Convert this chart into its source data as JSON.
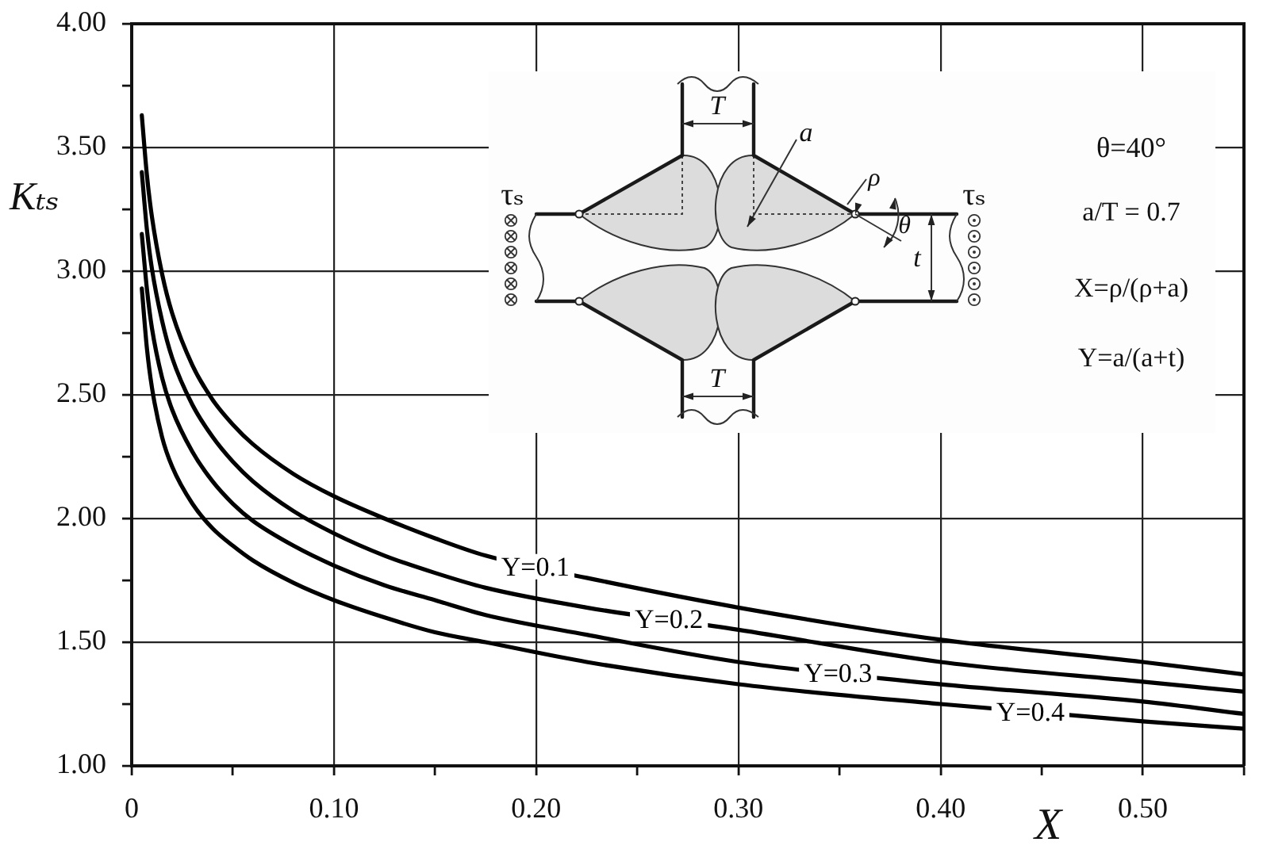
{
  "chart_data": {
    "type": "line",
    "xlabel": "X",
    "ylabel": "Kₜₛ",
    "x": [
      0.005,
      0.0075,
      0.01,
      0.015,
      0.02,
      0.03,
      0.04,
      0.05,
      0.06,
      0.08,
      0.1,
      0.125,
      0.15,
      0.175,
      0.225,
      0.3,
      0.4,
      0.5,
      0.55
    ],
    "series": [
      {
        "name": "Y=0.1",
        "color": "#000000",
        "values": [
          3.63,
          3.39,
          3.22,
          2.99,
          2.83,
          2.62,
          2.48,
          2.38,
          2.3,
          2.18,
          2.09,
          2.0,
          1.92,
          1.85,
          1.76,
          1.64,
          1.51,
          1.42,
          1.37
        ]
      },
      {
        "name": "Y=0.2",
        "color": "#000000",
        "values": [
          3.4,
          3.17,
          3.01,
          2.8,
          2.65,
          2.46,
          2.33,
          2.23,
          2.15,
          2.03,
          1.94,
          1.85,
          1.78,
          1.72,
          1.64,
          1.55,
          1.42,
          1.34,
          1.3
        ]
      },
      {
        "name": "Y=0.3",
        "color": "#000000",
        "values": [
          3.15,
          2.93,
          2.77,
          2.57,
          2.44,
          2.27,
          2.15,
          2.06,
          1.99,
          1.89,
          1.81,
          1.73,
          1.67,
          1.61,
          1.53,
          1.42,
          1.33,
          1.26,
          1.21
        ]
      },
      {
        "name": "Y=0.4",
        "color": "#000000",
        "values": [
          2.93,
          2.69,
          2.53,
          2.33,
          2.21,
          2.06,
          1.96,
          1.89,
          1.83,
          1.74,
          1.67,
          1.6,
          1.54,
          1.5,
          1.42,
          1.33,
          1.25,
          1.18,
          1.15
        ]
      }
    ],
    "xlim": [
      0,
      0.55
    ],
    "xticks": [
      0,
      {
        "value": 0.05,
        "label": null
      },
      {
        "value": 0.1,
        "label": "0.10"
      },
      {
        "value": 0.15,
        "label": null
      },
      {
        "value": 0.2,
        "label": "0.20"
      },
      {
        "value": 0.25,
        "label": null
      },
      {
        "value": 0.3,
        "label": "0.30"
      },
      {
        "value": 0.35,
        "label": null
      },
      {
        "value": 0.4,
        "label": "0.40"
      },
      {
        "value": 0.45,
        "label": null
      },
      {
        "value": 0.5,
        "label": "0.50"
      },
      {
        "value": 0.55,
        "label": null
      }
    ],
    "ylim": [
      1,
      4
    ],
    "yticks": [
      {
        "value": 1,
        "label": "1.00"
      },
      {
        "value": 1.25,
        "label": null
      },
      {
        "value": 1.5,
        "label": "1.50"
      },
      {
        "value": 1.75,
        "label": null
      },
      {
        "value": 2,
        "label": "2.00"
      },
      {
        "value": 2.25,
        "label": null
      },
      {
        "value": 2.5,
        "label": "2.50"
      },
      {
        "value": 2.75,
        "label": null
      },
      {
        "value": 3,
        "label": "3.00"
      },
      {
        "value": 3.25,
        "label": null
      },
      {
        "value": 3.5,
        "label": "3.50"
      },
      {
        "value": 3.75,
        "label": null
      },
      {
        "value": 4,
        "label": "4.00"
      }
    ],
    "grid": true,
    "legend": false,
    "marker": "none",
    "line_style": "solid",
    "annotations": [
      "θ=40°",
      "a/T = 0.7",
      "X=ρ/(ρ+a)",
      "Y=a/(a+t)",
      "τₛ",
      "τₛ",
      "T",
      "T",
      "a",
      "ρ",
      "θ",
      "t"
    ]
  }
}
